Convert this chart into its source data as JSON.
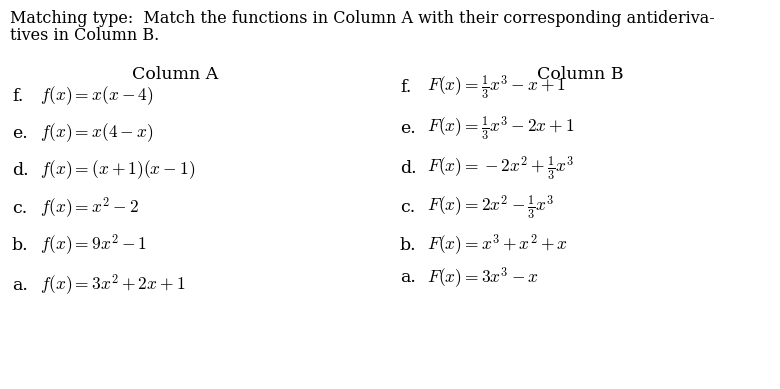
{
  "title_line1": "Matching type:  Match the functions in Column A with their corresponding antideriva-",
  "title_line2": "tives in Column B.",
  "col_a_header": "Column A",
  "col_b_header": "Column B",
  "col_a_labels": [
    "a.",
    "b.",
    "c.",
    "d.",
    "e.",
    "f."
  ],
  "col_a_math": [
    "$f(x) = 3x^2 + 2x + 1$",
    "$f(x) = 9x^2 - 1$",
    "$f(x) = x^2 - 2$",
    "$f(x) = (x + 1)(x - 1)$",
    "$f(x) = x(4 - x)$",
    "$f(x) = x(x - 4)$"
  ],
  "col_b_labels": [
    "a.",
    "b.",
    "c.",
    "d.",
    "e.",
    "f."
  ],
  "col_b_math": [
    "$F(x) = 3x^3 - x$",
    "$F(x) = x^3 + x^2 + x$",
    "$F(x) = 2x^2 - \\frac{1}{3}x^3$",
    "$F(x) = -2x^2 + \\frac{1}{3}x^3$",
    "$F(x) = \\frac{1}{3}x^3 - 2x + 1$",
    "$F(x) = \\frac{1}{3}x^3 - x + 1$"
  ],
  "bg_color": "#ffffff",
  "text_color": "#000000",
  "title_fontsize": 11.5,
  "header_fontsize": 12.5,
  "item_fontsize": 12.5
}
